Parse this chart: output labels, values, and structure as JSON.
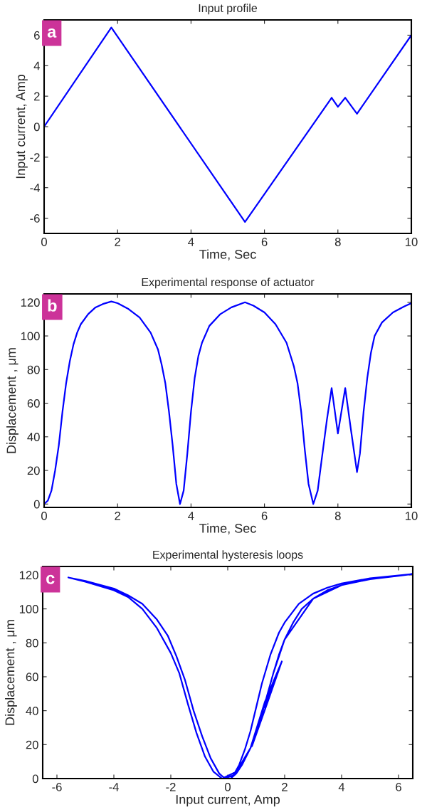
{
  "chart_data": [
    {
      "type": "line",
      "title": "Input profile",
      "xlabel": "Time, Sec",
      "ylabel": "Input current, Amp",
      "annotations": [
        "a"
      ],
      "xlim": [
        0,
        10
      ],
      "ylim": [
        -7,
        7
      ],
      "xticks": [
        0,
        2,
        4,
        6,
        8,
        10
      ],
      "yticks": [
        -6,
        -4,
        -2,
        0,
        2,
        4,
        6
      ],
      "series": [
        {
          "color": "#0000ff",
          "x": [
            0,
            1.83,
            5.47,
            7.83,
            8.0,
            8.2,
            8.52,
            10
          ],
          "values": [
            0,
            6.5,
            -6.25,
            1.9,
            1.3,
            1.9,
            0.85,
            6.0
          ]
        }
      ]
    },
    {
      "type": "line",
      "title": "Experimental response of actuator",
      "xlabel": "Time, Sec",
      "ylabel": "Displacement , μm",
      "annotations": [
        "b"
      ],
      "xlim": [
        0,
        10
      ],
      "ylim": [
        -2,
        125
      ],
      "xticks": [
        0,
        2,
        4,
        6,
        8,
        10
      ],
      "yticks": [
        0,
        20,
        40,
        60,
        80,
        100,
        120
      ],
      "series": [
        {
          "color": "#0000ff",
          "x": [
            0,
            0.1,
            0.2,
            0.3,
            0.4,
            0.5,
            0.6,
            0.7,
            0.8,
            0.9,
            1.0,
            1.2,
            1.4,
            1.6,
            1.83,
            2.0,
            2.3,
            2.6,
            2.9,
            3.1,
            3.2,
            3.3,
            3.4,
            3.5,
            3.6,
            3.7,
            3.8,
            3.9,
            4.0,
            4.1,
            4.2,
            4.3,
            4.5,
            4.8,
            5.1,
            5.47,
            5.7,
            6.0,
            6.3,
            6.6,
            6.8,
            6.9,
            7.0,
            7.1,
            7.2,
            7.33,
            7.45,
            7.55,
            7.7,
            7.83,
            8.0,
            8.2,
            8.35,
            8.52,
            8.6,
            8.7,
            8.8,
            8.9,
            9.0,
            9.2,
            9.5,
            9.8,
            10
          ],
          "values": [
            0,
            2,
            8,
            20,
            35,
            55,
            72,
            85,
            95,
            102,
            107,
            113,
            117,
            119,
            120.5,
            119.5,
            116,
            111,
            102,
            92,
            83,
            72,
            55,
            35,
            12,
            0,
            8,
            30,
            55,
            75,
            88,
            96,
            106,
            113,
            117,
            120,
            118,
            114,
            107,
            96,
            82,
            72,
            55,
            32,
            12,
            0,
            8,
            25,
            50,
            69,
            42,
            69,
            45,
            19,
            30,
            55,
            75,
            90,
            100,
            108,
            114,
            117.5,
            119.5
          ]
        }
      ]
    },
    {
      "type": "line",
      "title": "Experimental hysteresis loops",
      "xlabel": "Input current, Amp",
      "ylabel": "Displacement , μm",
      "annotations": [
        "c"
      ],
      "xlim": [
        -6.5,
        6.5
      ],
      "ylim": [
        0,
        125
      ],
      "xticks": [
        -6,
        -4,
        -2,
        0,
        2,
        4,
        6
      ],
      "yticks": [
        0,
        20,
        40,
        60,
        80,
        100,
        120
      ],
      "series": [
        {
          "color": "#0000ff",
          "x": [
            0.1,
            0.3,
            0.5,
            0.8,
            1.0,
            1.2,
            1.4,
            1.6,
            1.8,
            2.0,
            2.3,
            2.6,
            3.0,
            3.5,
            4.0,
            5.0,
            6.0,
            6.5,
            5.0,
            4.0,
            3.5,
            3.0,
            2.5,
            2.0,
            1.8,
            1.5,
            1.2,
            1.0,
            0.8,
            0.6,
            0.4,
            0.2,
            -0.1,
            -0.3,
            -0.6,
            -0.9,
            -1.2,
            -1.5,
            -1.8,
            -2.1,
            -2.5,
            -3.0,
            -3.5,
            -4.0,
            -5.0,
            -5.6,
            -5.0,
            -4.0,
            -3.5,
            -3.0,
            -2.5,
            -2.0,
            -1.7,
            -1.4,
            -1.1,
            -0.8,
            -0.5,
            -0.2,
            0.3,
            0.8,
            1.3,
            1.9,
            1.3,
            1.9,
            1.4,
            0.85,
            1.2,
            1.6,
            2.0,
            3.0,
            4.0,
            5.0,
            6.0
          ],
          "values": [
            0,
            3,
            8,
            18,
            27,
            38,
            50,
            62,
            73,
            82,
            92,
            100,
            106,
            111,
            114,
            117.5,
            119.5,
            120.5,
            118,
            115,
            112.5,
            109,
            103,
            92,
            86,
            73,
            56,
            42,
            28,
            17,
            8,
            2,
            0,
            3,
            12,
            25,
            40,
            58,
            72,
            84,
            94,
            103,
            108,
            112,
            116.5,
            118.5,
            116,
            111,
            107,
            100,
            89,
            74,
            62,
            44,
            27,
            13,
            4,
            0,
            4,
            18,
            45,
            69,
            42,
            69,
            45,
            19,
            38,
            62,
            82,
            106,
            114,
            117.5,
            119.5
          ]
        }
      ]
    }
  ]
}
